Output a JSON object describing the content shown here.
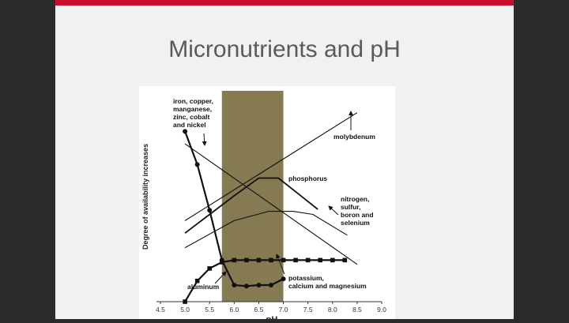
{
  "slide": {
    "title": "Micronutrients and pH",
    "accent_color": "#c8102e"
  },
  "chart_data": {
    "type": "line",
    "xlabel": "pH",
    "ylabel": "Degree of availability increases",
    "xlim": [
      4.5,
      9.0
    ],
    "x_ticks": [
      "4.5",
      "5.0",
      "5.5",
      "6.0",
      "6.5",
      "7.0",
      "7.5",
      "8.0",
      "8.5",
      "9.0"
    ],
    "grid": false,
    "highlight_band": {
      "x": [
        5.75,
        7.0
      ],
      "color": "#857a52"
    },
    "series": [
      {
        "name": "iron, copper, manganese, zinc, cobalt and nickel",
        "marker": "none",
        "x": [
          5.0,
          8.5
        ],
        "y": [
          7.6,
          1.8
        ]
      },
      {
        "name": "molybdenum",
        "marker": "none",
        "x": [
          5.0,
          8.5
        ],
        "y": [
          3.9,
          9.1
        ]
      },
      {
        "name": "phosphorus",
        "marker": "none",
        "x": [
          5.0,
          6.0,
          6.5,
          6.9,
          7.3,
          7.7
        ],
        "y": [
          3.3,
          5.1,
          5.95,
          5.95,
          5.2,
          4.45
        ]
      },
      {
        "name": "nitrogen, sulfur, boron and selenium",
        "marker": "none",
        "x": [
          5.0,
          6.0,
          6.7,
          7.2,
          7.6,
          8.3
        ],
        "y": [
          2.6,
          3.9,
          4.35,
          4.35,
          4.2,
          3.2
        ]
      },
      {
        "name": "aluminum",
        "marker": "circle",
        "bold": true,
        "x": [
          5.0,
          5.25,
          5.5,
          5.75,
          6.0,
          6.25,
          6.5,
          6.75,
          7.0
        ],
        "y": [
          8.2,
          6.6,
          4.4,
          2.0,
          0.8,
          0.75,
          0.8,
          0.8,
          1.1
        ]
      },
      {
        "name": "potassium, calcium and magnesium",
        "marker": "square",
        "bold": true,
        "x": [
          5.0,
          5.25,
          5.5,
          5.75,
          6.0,
          6.25,
          6.5,
          6.75,
          7.0,
          7.25,
          7.5,
          7.75,
          8.0,
          8.25
        ],
        "y": [
          0.0,
          1.0,
          1.6,
          1.9,
          2.0,
          2.0,
          2.0,
          2.0,
          2.0,
          2.0,
          2.0,
          2.0,
          2.0,
          2.0
        ]
      }
    ],
    "annotations": [
      {
        "key": "iron",
        "lines": [
          "iron, copper,",
          "manganese,",
          "zinc, cobalt",
          "and nickel"
        ]
      },
      {
        "key": "molybdenum",
        "lines": [
          "molybdenum"
        ]
      },
      {
        "key": "phosphorus",
        "lines": [
          "phosphorus"
        ]
      },
      {
        "key": "nitrogen",
        "lines": [
          "nitrogen,",
          "sulfur,",
          "boron and",
          "selenium"
        ]
      },
      {
        "key": "aluminum",
        "lines": [
          "aluminum"
        ]
      },
      {
        "key": "potassium",
        "lines": [
          "potassium,",
          "calcium and magnesium"
        ]
      }
    ]
  }
}
